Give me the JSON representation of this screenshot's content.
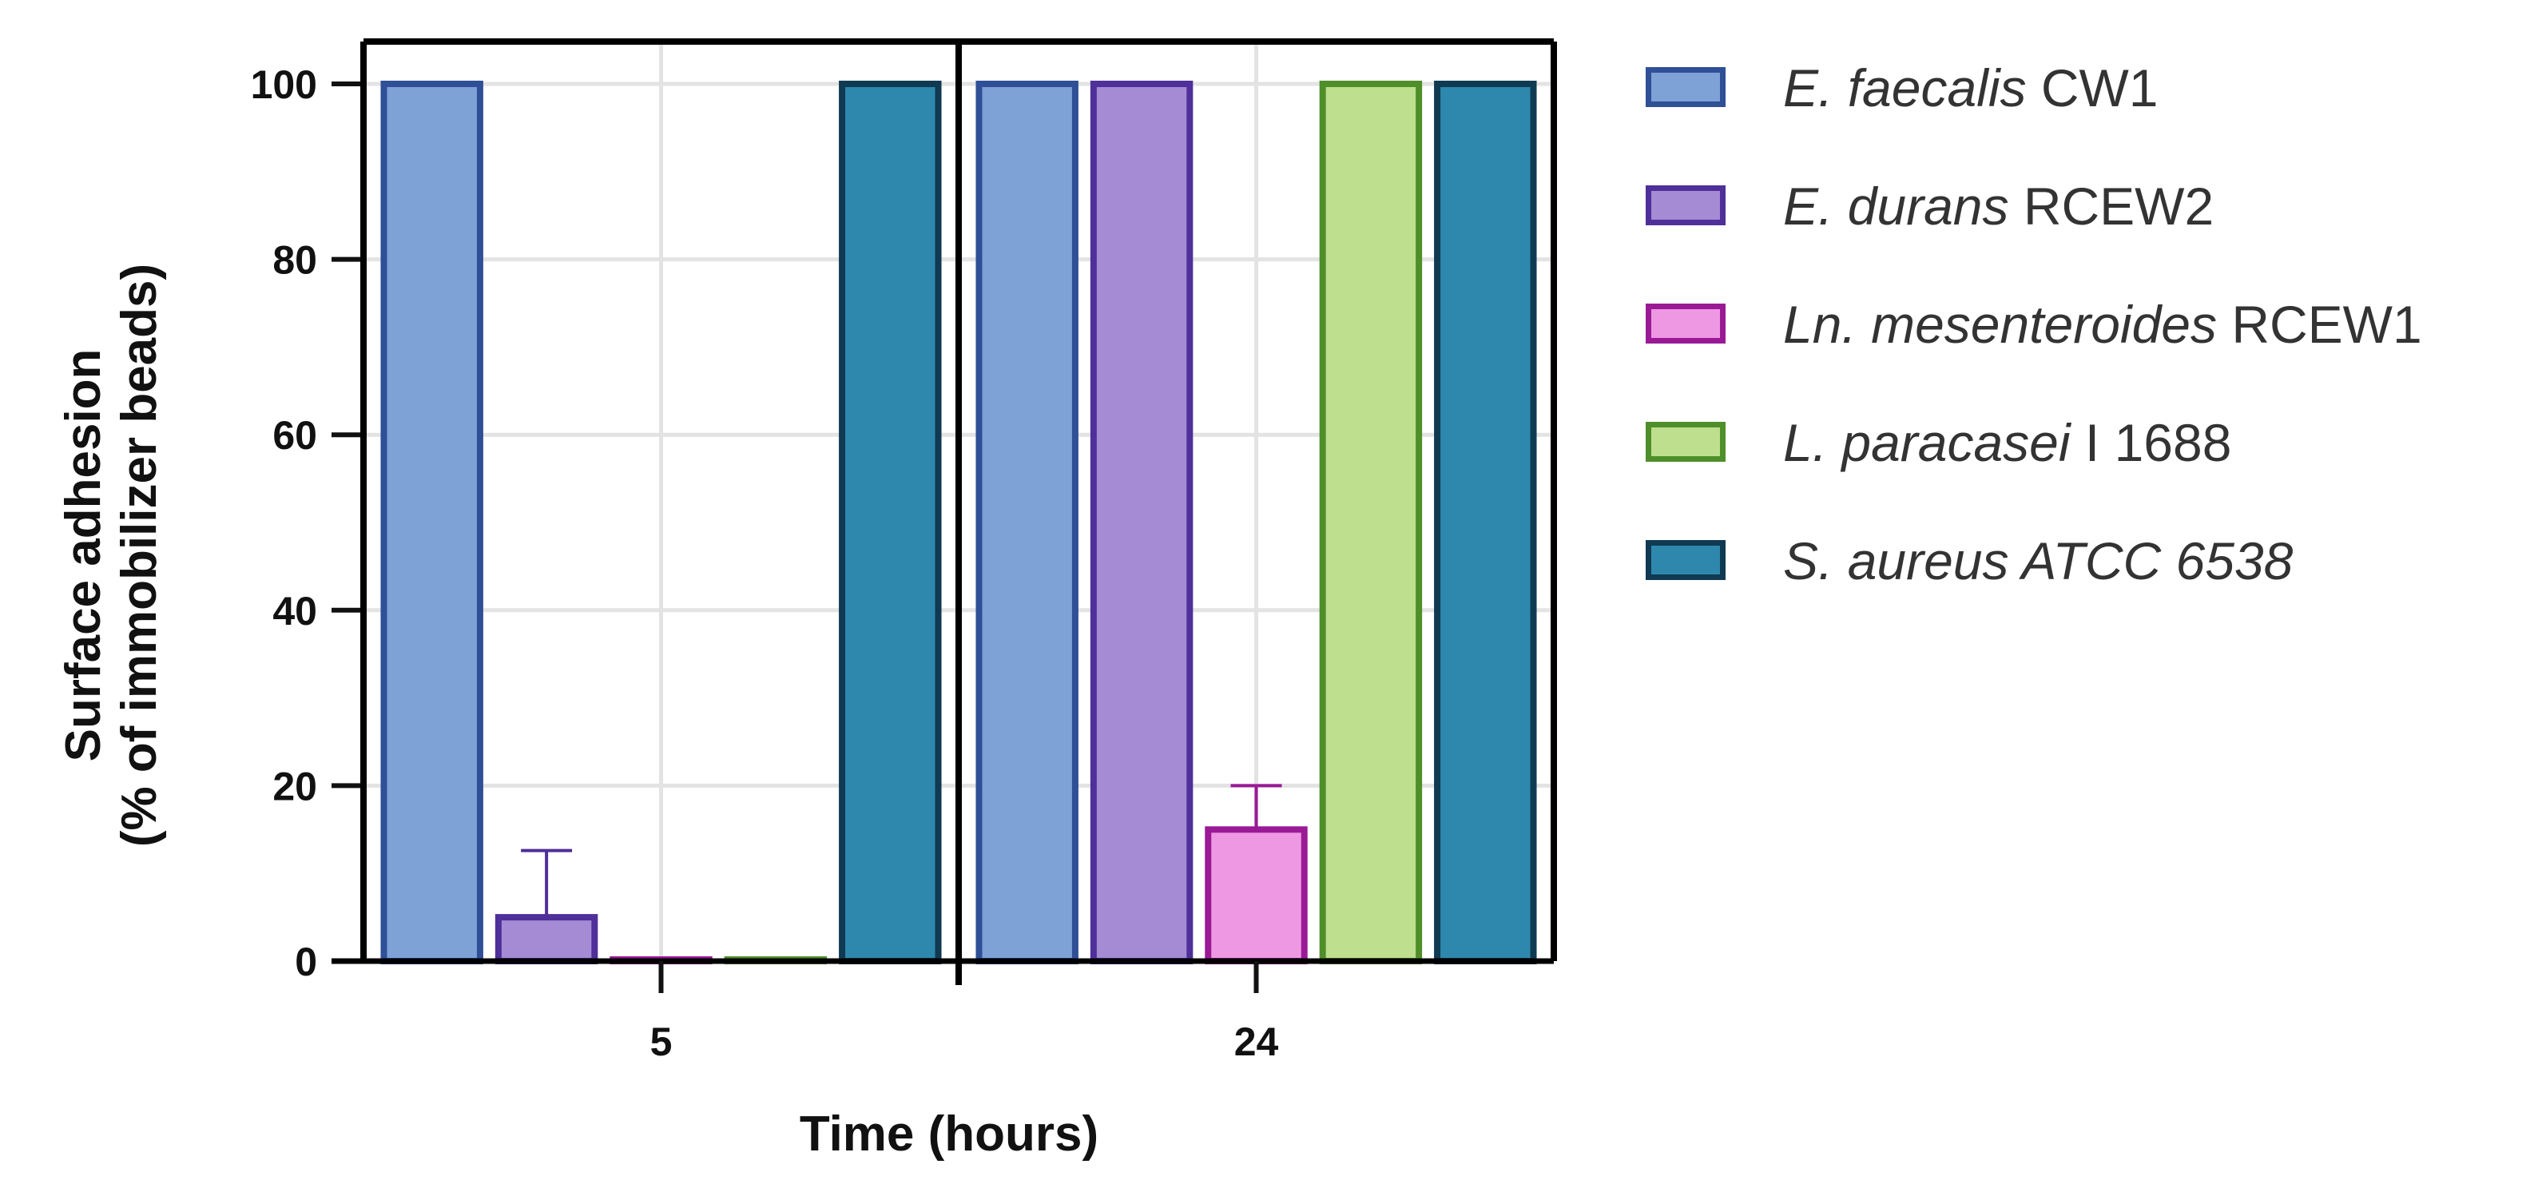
{
  "chart_data": {
    "type": "bar",
    "title": "",
    "xlabel": "Time (hours)",
    "ylabel_lines": [
      "Surface adhesion",
      "(% of immobilizer beads)"
    ],
    "ylim": [
      0,
      100
    ],
    "yticks": [
      "0",
      "20",
      "40",
      "60",
      "80",
      "100"
    ],
    "categories": [
      "5",
      "24"
    ],
    "grid": true,
    "legend_position": "right",
    "series": [
      {
        "name_italic": "E. faecalis",
        "name_plain": " CW1",
        "fill": "#7ea1d6",
        "stroke": "#2f4f97",
        "values": [
          100,
          100
        ],
        "error": [
          0,
          0
        ]
      },
      {
        "name_italic": "E. durans",
        "name_plain": " RCEW2",
        "fill": "#a48bd4",
        "stroke": "#4f2f99",
        "values": [
          5,
          100
        ],
        "error": [
          7.6,
          0
        ]
      },
      {
        "name_italic": "Ln. mesenteroides",
        "name_plain": " RCEW1",
        "fill": "#ee98e4",
        "stroke": "#9a1a96",
        "values": [
          0,
          15
        ],
        "error": [
          0,
          5
        ]
      },
      {
        "name_italic": "L. paracasei",
        "name_plain": " I 1688",
        "fill": "#bddf8e",
        "stroke": "#4f8f2a",
        "values": [
          0,
          100
        ],
        "error": [
          0,
          0
        ]
      },
      {
        "name_italic": "S. aureus ATCC 6538",
        "name_plain": "",
        "fill": "#2e88ad",
        "stroke": "#0f3a52",
        "values": [
          100,
          100
        ],
        "error": [
          0,
          0
        ]
      }
    ]
  }
}
